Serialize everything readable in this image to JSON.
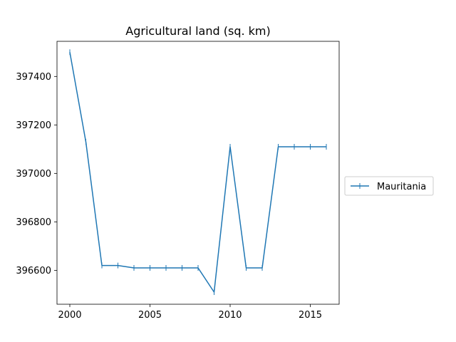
{
  "chart_data": {
    "type": "line",
    "title": "Agricultural land (sq. km)",
    "xlabel": "",
    "ylabel": "",
    "x": [
      2000,
      2001,
      2002,
      2003,
      2004,
      2005,
      2006,
      2007,
      2008,
      2009,
      2010,
      2011,
      2012,
      2013,
      2014,
      2015,
      2016
    ],
    "series": [
      {
        "name": "Mauritania",
        "color": "#1f77b4",
        "marker": "plus",
        "values": [
          397500,
          397130,
          396620,
          396620,
          396610,
          396610,
          396610,
          396610,
          396610,
          396510,
          397110,
          396610,
          396610,
          397110,
          397110,
          397110,
          397110
        ]
      }
    ],
    "xlim": [
      1999.2,
      2016.8
    ],
    "ylim": [
      396460,
      397545
    ],
    "xticks": [
      2000,
      2005,
      2010,
      2015
    ],
    "yticks": [
      396600,
      396800,
      397000,
      397200,
      397400
    ],
    "xtick_labels": [
      "2000",
      "2005",
      "2010",
      "2015"
    ],
    "ytick_labels": [
      "396600",
      "396800",
      "397000",
      "397200",
      "397400"
    ],
    "grid": false,
    "legend_position": "outside-right"
  }
}
